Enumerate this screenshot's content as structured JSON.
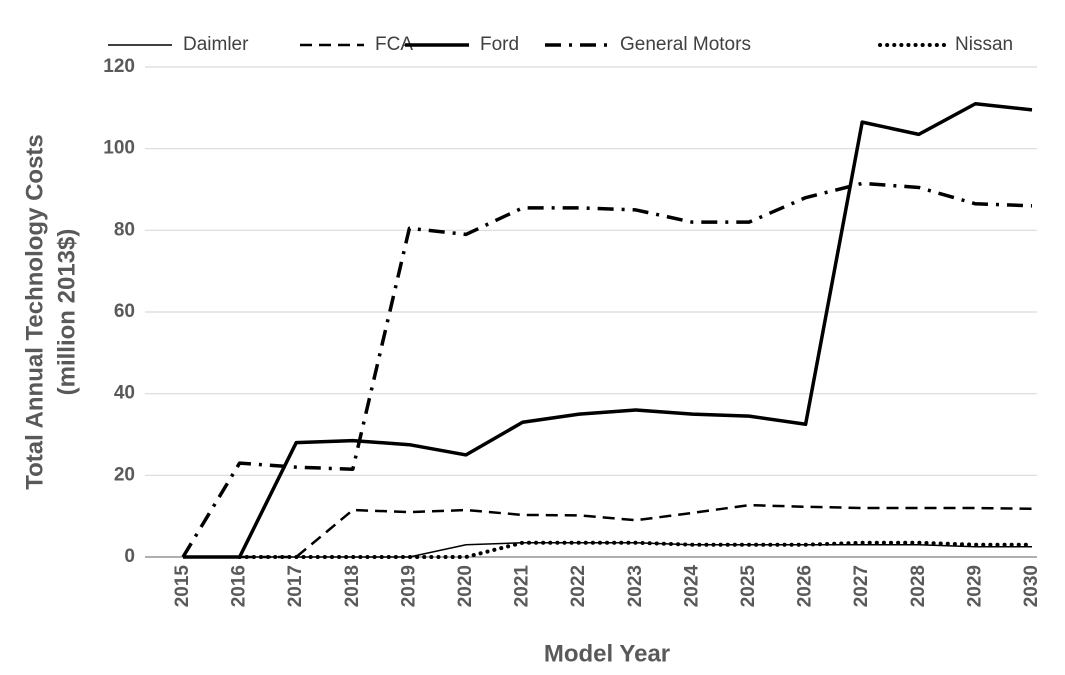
{
  "chart_data": {
    "type": "line",
    "ylabel": [
      "Total Annual Technology Costs",
      "(million 2013$)"
    ],
    "xlabel": "Model Year",
    "categories": [
      "2015",
      "2016",
      "2017",
      "2018",
      "2019",
      "2020",
      "2021",
      "2022",
      "2023",
      "2024",
      "2025",
      "2026",
      "2027",
      "2028",
      "2029",
      "2030"
    ],
    "series": [
      {
        "name": "Daimler",
        "color": "#000000",
        "style": "solid",
        "values": [
          0,
          0,
          0,
          0,
          0,
          3,
          3.5,
          3.5,
          3.5,
          3,
          3,
          3,
          3,
          3,
          2.5,
          2.5
        ]
      },
      {
        "name": "FCA",
        "color": "#000000",
        "style": "dashed",
        "values": [
          0,
          0,
          0,
          11.5,
          11,
          11.5,
          10.3,
          10.2,
          9,
          10.8,
          12.7,
          12.3,
          12,
          12,
          12,
          11.8
        ]
      },
      {
        "name": "Ford",
        "color": "#000000",
        "style": "thick",
        "values": [
          0,
          0,
          28,
          28.5,
          27.5,
          25,
          33,
          35,
          36,
          35,
          34.5,
          32.5,
          106.5,
          103.5,
          111,
          109.5
        ]
      },
      {
        "name": "General Motors",
        "color": "#000000",
        "style": "dash-dot",
        "values": [
          0,
          23,
          22,
          21.5,
          80.5,
          79,
          85.5,
          85.5,
          85,
          82,
          82,
          88,
          91.5,
          90.5,
          86.5,
          86
        ]
      },
      {
        "name": "Nissan",
        "color": "#000000",
        "style": "dotted",
        "values": [
          null,
          0,
          0,
          0,
          0,
          0,
          3.5,
          3.5,
          3.5,
          3,
          3,
          3,
          3.5,
          3.5,
          3,
          3
        ]
      }
    ],
    "ylim": [
      0,
      120
    ],
    "yticks": [
      0,
      20,
      40,
      60,
      80,
      100,
      120
    ],
    "grid": true,
    "legend": "top"
  }
}
